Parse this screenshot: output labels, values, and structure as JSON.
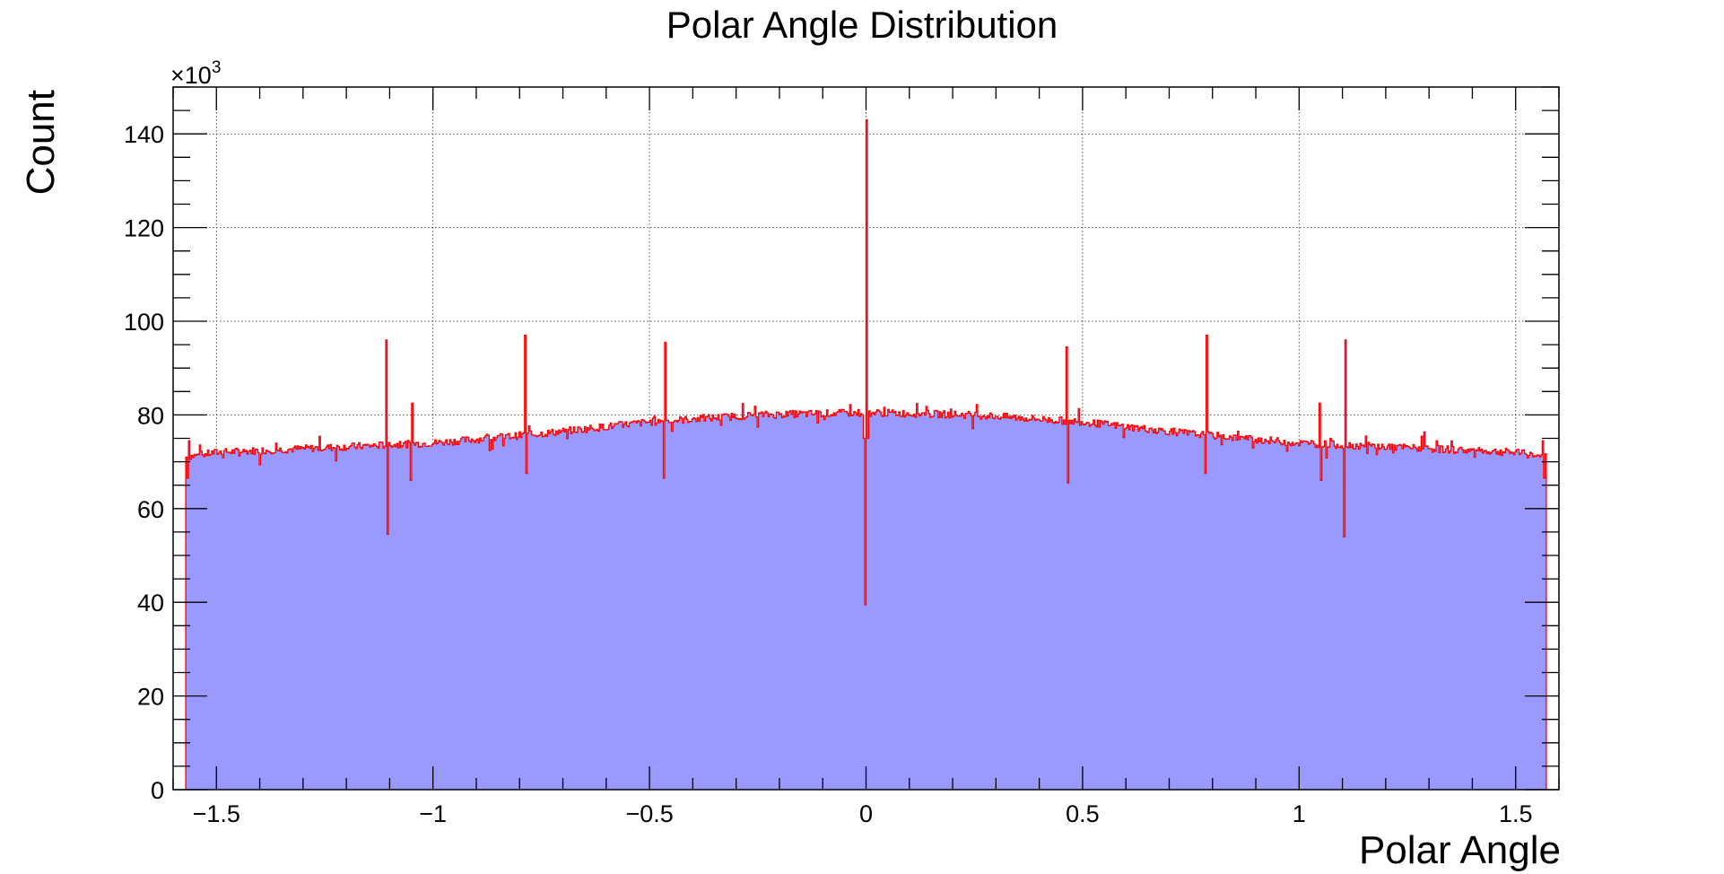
{
  "chart_data": {
    "type": "bar",
    "title": "Polar Angle Distribution",
    "xlabel": "Polar Angle",
    "ylabel": "Count",
    "y_multiplier_label": "×10",
    "y_multiplier_exponent": "3",
    "xlim": [
      -1.6,
      1.6
    ],
    "ylim": [
      0,
      150
    ],
    "y_unit": "thousands",
    "x_ticks": [
      -1.5,
      -1,
      -0.5,
      0,
      0.5,
      1,
      1.5
    ],
    "x_tick_labels": [
      "−1.5",
      "−1",
      "−0.5",
      "0",
      "0.5",
      "1",
      "1.5"
    ],
    "y_ticks": [
      0,
      20,
      40,
      60,
      80,
      100,
      120,
      140
    ],
    "y_tick_labels": [
      "0",
      "20",
      "40",
      "60",
      "80",
      "100",
      "120",
      "140"
    ],
    "grid": true,
    "legend": "none",
    "histogram": {
      "range": [
        -1.5708,
        1.5708
      ],
      "bins": 1000,
      "baseline_profile": [
        [
          -1.5708,
          71.0
        ],
        [
          -1.5,
          72.0
        ],
        [
          -1.0,
          74.0
        ],
        [
          -0.75,
          76.0
        ],
        [
          -0.5,
          78.5
        ],
        [
          -0.25,
          80.0
        ],
        [
          0.0,
          80.5
        ],
        [
          0.25,
          80.0
        ],
        [
          0.5,
          78.5
        ],
        [
          0.75,
          76.0
        ],
        [
          1.0,
          74.0
        ],
        [
          1.5,
          72.0
        ],
        [
          1.5708,
          71.0
        ]
      ],
      "spikes": [
        {
          "x": -1.565,
          "value": 66.5
        },
        {
          "x": -1.563,
          "value": 74.5
        },
        {
          "x": -1.107,
          "value": 96.0
        },
        {
          "x": -1.104,
          "value": 54.5
        },
        {
          "x": -1.05,
          "value": 66.0
        },
        {
          "x": -1.047,
          "value": 82.5
        },
        {
          "x": -0.787,
          "value": 97.0
        },
        {
          "x": -0.784,
          "value": 67.5
        },
        {
          "x": -0.465,
          "value": 66.5
        },
        {
          "x": -0.462,
          "value": 95.5
        },
        {
          "x": -0.005,
          "value": 75.0
        },
        {
          "x": -0.002,
          "value": 39.5
        },
        {
          "x": 0.0015,
          "value": 143.0
        },
        {
          "x": 0.0045,
          "value": 75.0
        },
        {
          "x": 0.462,
          "value": 94.5
        },
        {
          "x": 0.465,
          "value": 65.5
        },
        {
          "x": 0.784,
          "value": 67.5
        },
        {
          "x": 0.787,
          "value": 97.0
        },
        {
          "x": 1.047,
          "value": 82.5
        },
        {
          "x": 1.05,
          "value": 66.0
        },
        {
          "x": 1.104,
          "value": 54.0
        },
        {
          "x": 1.107,
          "value": 96.0
        },
        {
          "x": 1.563,
          "value": 74.5
        },
        {
          "x": 1.565,
          "value": 66.5
        }
      ]
    },
    "colors": {
      "fill": "#9999ff",
      "line": "#ff0000",
      "frame": "#000000",
      "grid": "#555555"
    }
  }
}
